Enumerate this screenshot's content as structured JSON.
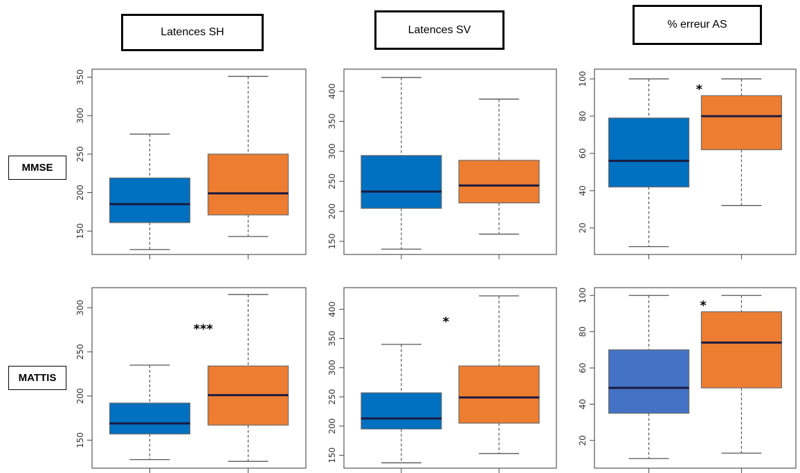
{
  "columns": [
    {
      "label": "Latences SH"
    },
    {
      "label": "Latences SV"
    },
    {
      "label": "% erreur AS"
    }
  ],
  "rows": [
    {
      "label": "MMSE"
    },
    {
      "label": "MATTIS"
    }
  ],
  "colors": {
    "group1": "#0070C0",
    "group1_alt": "#4472C4",
    "group2": "#ED7D31",
    "median": "#1a1a40"
  },
  "chart_data": [
    {
      "type": "boxplot",
      "row": "MMSE",
      "column": "Latences SH",
      "ylim": [
        125,
        355
      ],
      "yticks": [
        150,
        200,
        250,
        300,
        350
      ],
      "significance": "",
      "boxes": [
        {
          "min": 126,
          "q1": 161,
          "median": 185,
          "q3": 219,
          "max": 276,
          "color": "group1"
        },
        {
          "min": 143,
          "q1": 171,
          "median": 199,
          "q3": 250,
          "max": 351,
          "color": "group2"
        }
      ]
    },
    {
      "type": "boxplot",
      "row": "MMSE",
      "column": "Latences SV",
      "ylim": [
        135,
        430
      ],
      "yticks": [
        150,
        200,
        250,
        300,
        350,
        400
      ],
      "significance": "",
      "boxes": [
        {
          "min": 137,
          "q1": 205,
          "median": 233,
          "q3": 293,
          "max": 423,
          "color": "group1"
        },
        {
          "min": 162,
          "q1": 214,
          "median": 243,
          "q3": 285,
          "max": 387,
          "color": "group2"
        }
      ]
    },
    {
      "type": "boxplot",
      "row": "MMSE",
      "column": "% erreur AS",
      "ylim": [
        8,
        103
      ],
      "yticks": [
        20,
        40,
        60,
        80,
        100
      ],
      "significance": "*",
      "boxes": [
        {
          "min": 10,
          "q1": 42,
          "median": 56,
          "q3": 79,
          "max": 100,
          "color": "group1"
        },
        {
          "min": 32,
          "q1": 62,
          "median": 80,
          "q3": 91,
          "max": 100,
          "color": "group2"
        }
      ]
    },
    {
      "type": "boxplot",
      "row": "MATTIS",
      "column": "Latences SH",
      "ylim": [
        123,
        318
      ],
      "yticks": [
        150,
        200,
        250,
        300
      ],
      "significance": "***",
      "boxes": [
        {
          "min": 128,
          "q1": 157,
          "median": 169,
          "q3": 192,
          "max": 235,
          "color": "group1"
        },
        {
          "min": 126,
          "q1": 167,
          "median": 201,
          "q3": 234,
          "max": 315,
          "color": "group2"
        }
      ]
    },
    {
      "type": "boxplot",
      "row": "MATTIS",
      "column": "Latences SV",
      "ylim": [
        135,
        430
      ],
      "yticks": [
        150,
        200,
        250,
        300,
        350,
        400
      ],
      "significance": "*",
      "boxes": [
        {
          "min": 137,
          "q1": 195,
          "median": 213,
          "q3": 257,
          "max": 340,
          "color": "group1"
        },
        {
          "min": 153,
          "q1": 205,
          "median": 249,
          "q3": 303,
          "max": 423,
          "color": "group2"
        }
      ]
    },
    {
      "type": "boxplot",
      "row": "MATTIS",
      "column": "% erreur AS",
      "ylim": [
        7,
        102
      ],
      "yticks": [
        20,
        40,
        60,
        80,
        100
      ],
      "significance": "*",
      "boxes": [
        {
          "min": 10,
          "q1": 35,
          "median": 49,
          "q3": 70,
          "max": 100,
          "color": "group1_alt"
        },
        {
          "min": 13,
          "q1": 49,
          "median": 74,
          "q3": 91,
          "max": 100,
          "color": "group2"
        }
      ]
    }
  ]
}
